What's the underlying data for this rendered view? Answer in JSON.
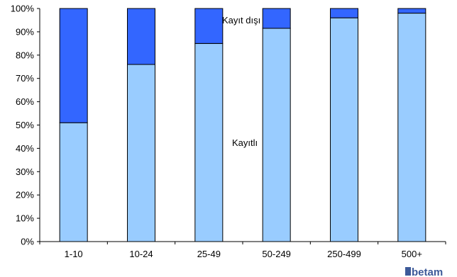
{
  "chart_data": {
    "type": "bar",
    "stacked": true,
    "categories": [
      "1-10",
      "10-24",
      "25-49",
      "50-249",
      "250-499",
      "500+"
    ],
    "series": [
      {
        "name": "Kayıtlı",
        "values": [
          51,
          76,
          85,
          91.5,
          96,
          98
        ],
        "color": "#99ccff"
      },
      {
        "name": "Kayıt dışı",
        "values": [
          49,
          24,
          15,
          8.5,
          4,
          2
        ],
        "color": "#3366ff"
      }
    ],
    "ylim": [
      0,
      100
    ],
    "yticks": [
      "0%",
      "10%",
      "20%",
      "30%",
      "40%",
      "50%",
      "60%",
      "70%",
      "80%",
      "90%",
      "100%"
    ],
    "grid": false,
    "legend": "none"
  },
  "logo": {
    "text": "betam",
    "color": "#3d5a99"
  }
}
